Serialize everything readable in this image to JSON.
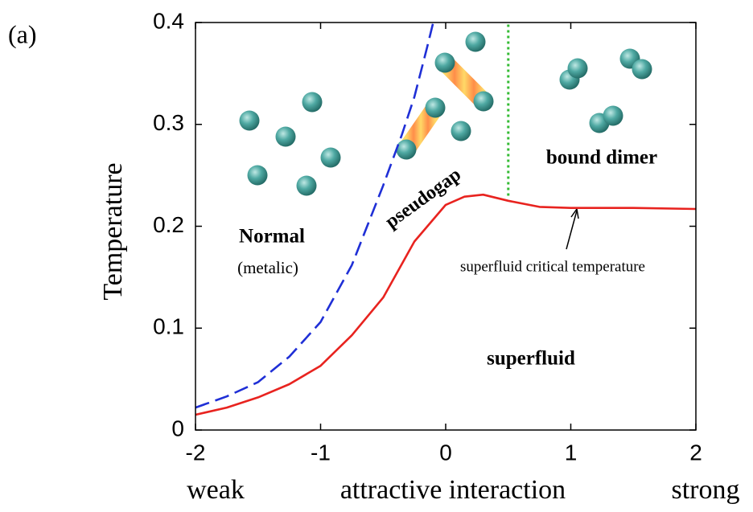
{
  "chart_data": {
    "type": "line",
    "panel_label": "(a)",
    "ylabel": "Temperature",
    "xlabel": "attractive interaction",
    "xlabel_left": "weak",
    "xlabel_right": "strong",
    "xlim": [
      -2,
      2
    ],
    "ylim": [
      0,
      0.4
    ],
    "xticks": [
      -2,
      -1,
      0,
      1,
      2
    ],
    "yticks": [
      0,
      0.1,
      0.2,
      0.3,
      0.4
    ],
    "grid": false,
    "series": [
      {
        "color": "#e8231f",
        "style": "solid",
        "x": [
          -2,
          -1.75,
          -1.5,
          -1.25,
          -1,
          -0.75,
          -0.5,
          -0.25,
          0,
          0.15,
          0.3,
          0.5,
          0.75,
          1,
          1.5,
          2
        ],
        "values": [
          0.015,
          0.022,
          0.032,
          0.045,
          0.063,
          0.093,
          0.13,
          0.185,
          0.221,
          0.229,
          0.231,
          0.225,
          0.219,
          0.218,
          0.218,
          0.217
        ]
      },
      {
        "color": "#1f2fd6",
        "style": "dashed",
        "x": [
          -2,
          -1.75,
          -1.5,
          -1.25,
          -1,
          -0.75,
          -0.5,
          -0.35,
          -0.25,
          -0.15,
          -0.1
        ],
        "values": [
          0.022,
          0.033,
          0.047,
          0.072,
          0.106,
          0.162,
          0.24,
          0.29,
          0.327,
          0.375,
          0.4
        ]
      },
      {
        "color": "#33bb33",
        "style": "dotted",
        "x": [
          0.5,
          0.5
        ],
        "values": [
          0.23,
          0.4
        ]
      }
    ],
    "annotations": [
      "Normal",
      "(metalic)",
      "pseudogap",
      "bound dimer",
      "superfluid",
      "superfluid critical temperature"
    ]
  }
}
